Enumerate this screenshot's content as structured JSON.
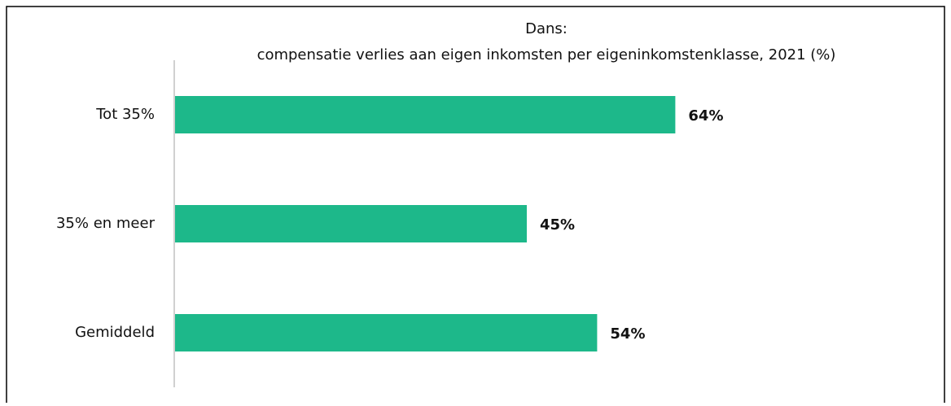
{
  "chart_data": {
    "type": "bar",
    "orientation": "horizontal",
    "title": "Dans:",
    "subtitle": "compensatie verlies aan eigen inkomsten per eigeninkomstenklasse, 2021 (%)",
    "categories": [
      "Tot 35%",
      "35% en meer",
      "Gemiddeld"
    ],
    "values": [
      64,
      45,
      54
    ],
    "value_labels": [
      "64%",
      "45%",
      "54%"
    ],
    "color": "#1db88a"
  }
}
